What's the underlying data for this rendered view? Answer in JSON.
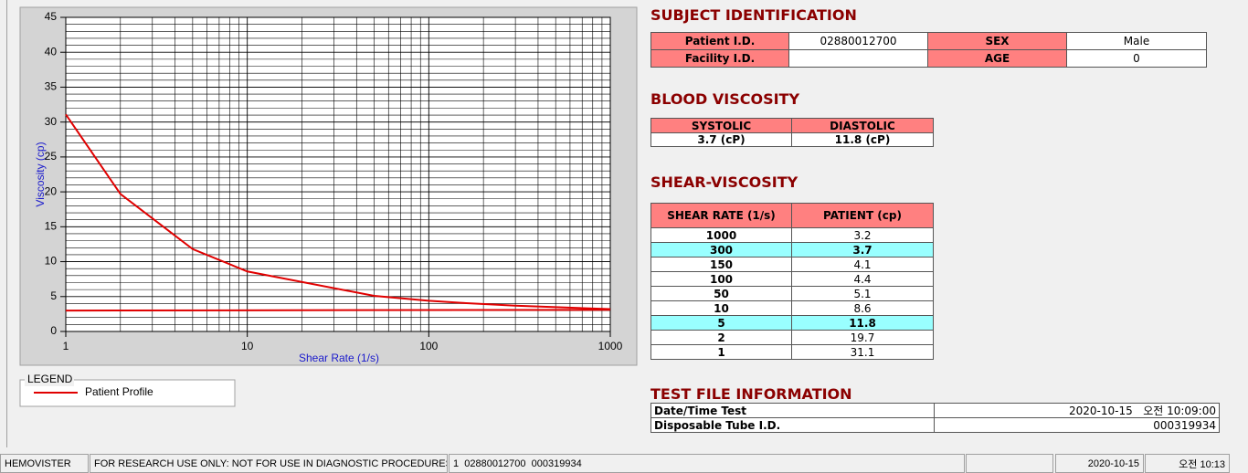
{
  "chart_data": {
    "type": "line",
    "xlabel": "Shear Rate (1/s)",
    "ylabel": "Viscosity (cp)",
    "xscale": "log",
    "xlim": [
      1,
      1000
    ],
    "xticks": [
      1,
      10,
      100,
      1000
    ],
    "ylim": [
      0,
      45
    ],
    "yticks": [
      0,
      5,
      10,
      15,
      20,
      25,
      30,
      35,
      40,
      45
    ],
    "grid": true,
    "legend_title": "LEGEND",
    "series": [
      {
        "name": "Patient Profile",
        "color": "#e00000",
        "x": [
          1,
          2,
          5,
          10,
          50,
          100,
          150,
          300,
          1000
        ],
        "values": [
          31.1,
          19.7,
          11.8,
          8.6,
          5.1,
          4.4,
          4.1,
          3.7,
          3.2
        ]
      },
      {
        "color": "#e00000",
        "x": [
          1,
          1000
        ],
        "values": [
          3,
          3.1
        ]
      }
    ]
  },
  "subject": {
    "title": "SUBJECT IDENTIFICATION",
    "rows": [
      [
        "Patient I.D.",
        "02880012700",
        "SEX",
        "Male"
      ],
      [
        "Facility I.D.",
        null,
        "AGE",
        "0"
      ]
    ]
  },
  "blood": {
    "title": "BLOOD VISCOSITY",
    "headers": [
      "SYSTOLIC",
      "DIASTOLIC"
    ],
    "values": [
      "3.7 (cP)",
      "11.8 (cP)"
    ]
  },
  "shear": {
    "title": "SHEAR-VISCOSITY",
    "headers": [
      "SHEAR RATE (1/s)",
      "PATIENT (cp)"
    ],
    "rows": [
      [
        "1000",
        "3.2"
      ],
      [
        "300",
        "3.7"
      ],
      [
        "150",
        "4.1"
      ],
      [
        "100",
        "4.4"
      ],
      [
        "50",
        "5.1"
      ],
      [
        "10",
        "8.6"
      ],
      [
        "5",
        "11.8"
      ],
      [
        "2",
        "19.7"
      ],
      [
        "1",
        "31.1"
      ]
    ],
    "highlight_rows": [
      1,
      6
    ]
  },
  "testfile": {
    "title": "TEST FILE INFORMATION",
    "rows": [
      [
        "Date/Time Test",
        "2020-10-15   오전 10:09:00"
      ],
      [
        "Disposable Tube I.D.",
        "000319934"
      ]
    ]
  },
  "status_bar": [
    "HEMOVISTER",
    "FOR RESEARCH USE ONLY: NOT FOR USE IN DIAGNOSTIC PROCEDURES",
    "1  02880012700  000319934",
    "2020-10-15",
    "오전 10:13"
  ]
}
